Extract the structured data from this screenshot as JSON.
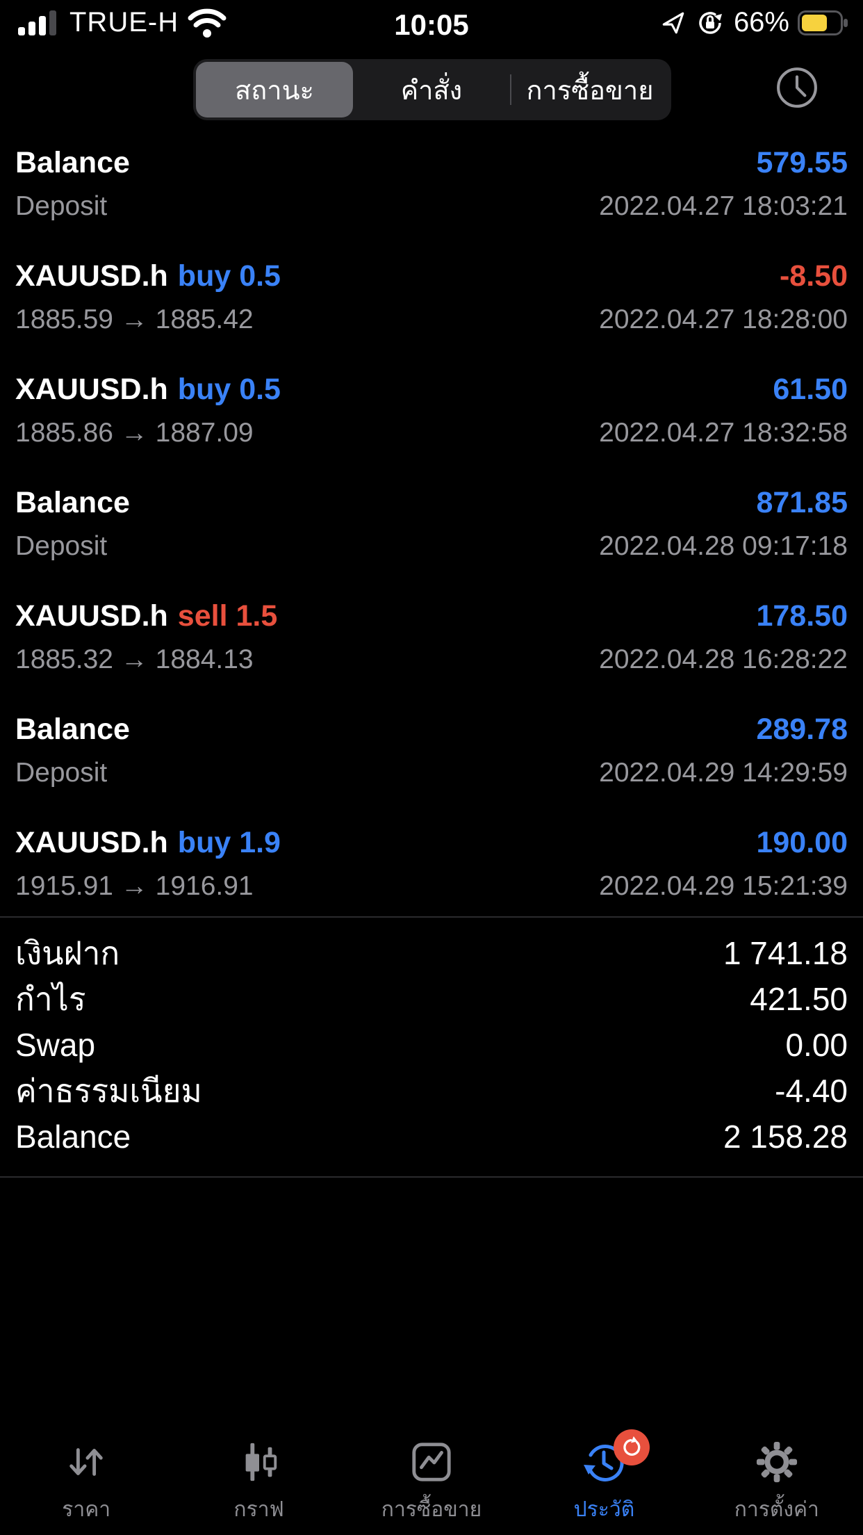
{
  "status_bar": {
    "carrier": "TRUE-H",
    "time": "10:05",
    "battery_percent": "66%",
    "battery_color": "#F7D23E",
    "icons": [
      "signal-bars",
      "wifi",
      "location-arrow",
      "orientation-lock",
      "battery"
    ]
  },
  "tabs": {
    "items": [
      {
        "label": "สถานะ",
        "selected": true
      },
      {
        "label": "คำสั่ง",
        "selected": false
      },
      {
        "label": "การซื้อขาย",
        "selected": false
      }
    ],
    "clock_icon": "history-range-clock"
  },
  "history": {
    "rows": [
      {
        "title": "Balance",
        "side": "",
        "side_color": "",
        "value": "579.55",
        "value_color": "blue",
        "sub_left": "Deposit",
        "sub_right": "2022.04.27 18:03:21"
      },
      {
        "title": "XAUUSD.h",
        "side": "buy 0.5",
        "side_color": "blue",
        "value": "-8.50",
        "value_color": "red",
        "sub_left": "1885.59 → 1885.42",
        "sub_right": "2022.04.27 18:28:00"
      },
      {
        "title": "XAUUSD.h",
        "side": "buy 0.5",
        "side_color": "blue",
        "value": "61.50",
        "value_color": "blue",
        "sub_left": "1885.86 → 1887.09",
        "sub_right": "2022.04.27 18:32:58"
      },
      {
        "title": "Balance",
        "side": "",
        "side_color": "",
        "value": "871.85",
        "value_color": "blue",
        "sub_left": "Deposit",
        "sub_right": "2022.04.28 09:17:18"
      },
      {
        "title": "XAUUSD.h",
        "side": "sell 1.5",
        "side_color": "red",
        "value": "178.50",
        "value_color": "blue",
        "sub_left": "1885.32 → 1884.13",
        "sub_right": "2022.04.28 16:28:22"
      },
      {
        "title": "Balance",
        "side": "",
        "side_color": "",
        "value": "289.78",
        "value_color": "blue",
        "sub_left": "Deposit",
        "sub_right": "2022.04.29 14:29:59"
      },
      {
        "title": "XAUUSD.h",
        "side": "buy 1.9",
        "side_color": "blue",
        "value": "190.00",
        "value_color": "blue",
        "sub_left": "1915.91 → 1916.91",
        "sub_right": "2022.04.29 15:21:39"
      }
    ]
  },
  "summary": {
    "rows": [
      {
        "label": "เงินฝาก",
        "value": "1 741.18"
      },
      {
        "label": "กำไร",
        "value": "421.50"
      },
      {
        "label": "Swap",
        "value": "0.00"
      },
      {
        "label": "ค่าธรรมเนียม",
        "value": "-4.40"
      },
      {
        "label": "Balance",
        "value": "2 158.28"
      }
    ]
  },
  "nav": {
    "items": [
      {
        "label": "ราคา",
        "icon": "quotes-arrows",
        "active": false
      },
      {
        "label": "กราฟ",
        "icon": "candlestick-chart",
        "active": false
      },
      {
        "label": "การซื้อขาย",
        "icon": "trade-box",
        "active": false
      },
      {
        "label": "ประวัติ",
        "icon": "history-clock",
        "active": true,
        "badge_icon": "refresh-arrow"
      },
      {
        "label": "การตั้งค่า",
        "icon": "settings-gear",
        "active": false
      }
    ]
  },
  "colors": {
    "background": "#000000",
    "accent_blue": "#3A82F7",
    "loss_red": "#E8503D",
    "muted_gray": "#98989D",
    "nav_gray": "#8F8F94",
    "segment_bg": "#1C1C1E",
    "segment_selected": "#67676C",
    "divider": "#2B2B2D",
    "battery_yellow": "#F7D23E"
  }
}
